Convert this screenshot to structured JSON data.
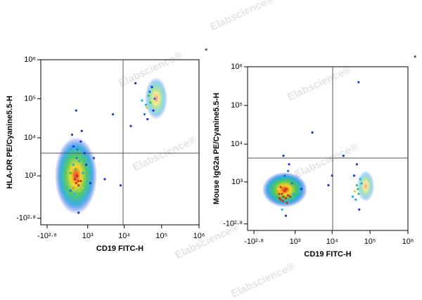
{
  "chart_data": [
    {
      "type": "scatter",
      "xlabel": "CD19 FITC-H",
      "ylabel": "HLA-DR PE/Cyanine5.5-H",
      "corner_mark": "*",
      "xscale": "asinh",
      "yscale": "asinh",
      "xlim": [
        -1000,
        1000000
      ],
      "ylim": [
        -1000,
        1000000
      ],
      "xticks": [
        {
          "value": -631,
          "label": "-10²·⁸"
        },
        {
          "value": 1000,
          "label": "10³"
        },
        {
          "value": 10000,
          "label": "10⁴"
        },
        {
          "value": 100000,
          "label": "10⁵"
        },
        {
          "value": 1000000,
          "label": "10⁶"
        }
      ],
      "yticks": [
        {
          "value": -631,
          "label": "-10²·⁸"
        },
        {
          "value": 1000,
          "label": "10³"
        },
        {
          "value": 10000,
          "label": "10⁴"
        },
        {
          "value": 100000,
          "label": "10⁵"
        },
        {
          "value": 1000000,
          "label": "10⁶"
        }
      ],
      "color": "#1e2fe0",
      "x": [
        400,
        350,
        500,
        450,
        300,
        600,
        380,
        520,
        420,
        300,
        700,
        250,
        550,
        350,
        500,
        800,
        450,
        600,
        300,
        200,
        900,
        1200,
        250,
        650,
        400,
        1500,
        200,
        700,
        480,
        40000,
        50000,
        35000,
        45000,
        60000,
        30000,
        55000,
        42000,
        48000,
        38000,
        65000,
        20000,
        3000,
        8000,
        15000,
        5000
      ],
      "y": [
        600,
        800,
        500,
        1000,
        400,
        700,
        1500,
        2500,
        3000,
        2000,
        1200,
        900,
        300,
        200,
        -400,
        4000,
        5000,
        8000,
        6000,
        1200,
        2000,
        600,
        12000,
        15000,
        50000,
        3000,
        300,
        400,
        700,
        60000,
        80000,
        40000,
        120000,
        50000,
        90000,
        200000,
        30000,
        150000,
        70000,
        100000,
        250000,
        800,
        500,
        20000,
        40000
      ]
    },
    {
      "type": "scatter",
      "xlabel": "CD19 FITC-H",
      "ylabel": "Mouse IgG2a PE/Cyanine5.5-H",
      "corner_mark": "*",
      "xscale": "asinh",
      "yscale": "asinh",
      "xlim": [
        -1000,
        1000000
      ],
      "ylim": [
        -1000,
        1000000
      ],
      "xticks": [
        {
          "value": -631,
          "label": "-10²·⁸"
        },
        {
          "value": 1000,
          "label": "10³"
        },
        {
          "value": 10000,
          "label": "10⁴"
        },
        {
          "value": 100000,
          "label": "10⁵"
        },
        {
          "value": 1000000,
          "label": "10⁶"
        }
      ],
      "yticks": [
        {
          "value": -631,
          "label": "-10²·⁸"
        },
        {
          "value": 1000,
          "label": "10³"
        },
        {
          "value": 10000,
          "label": "10⁴"
        },
        {
          "value": 100000,
          "label": "10⁵"
        },
        {
          "value": 1000000,
          "label": "10⁶"
        }
      ],
      "color": "#1e2fe0",
      "x": [
        400,
        350,
        500,
        450,
        300,
        600,
        380,
        520,
        420,
        300,
        700,
        250,
        550,
        350,
        800,
        450,
        600,
        300,
        200,
        900,
        1200,
        500,
        250,
        650,
        400,
        1500,
        40000,
        50000,
        45000,
        35000,
        55000,
        48000,
        42000,
        60000,
        38000,
        52000,
        45000,
        10000,
        20000,
        3000,
        50000,
        8000
      ],
      "y": [
        300,
        400,
        250,
        500,
        200,
        350,
        150,
        600,
        800,
        700,
        300,
        400,
        100,
        -100,
        900,
        1500,
        2000,
        1200,
        500,
        400,
        300,
        -300,
        250,
        3000,
        5000,
        600,
        500,
        400,
        800,
        300,
        1200,
        600,
        200,
        900,
        1500,
        -100,
        3000,
        1500,
        5000,
        20000,
        400000,
        800
      ]
    }
  ],
  "watermark": "Elabscience®"
}
